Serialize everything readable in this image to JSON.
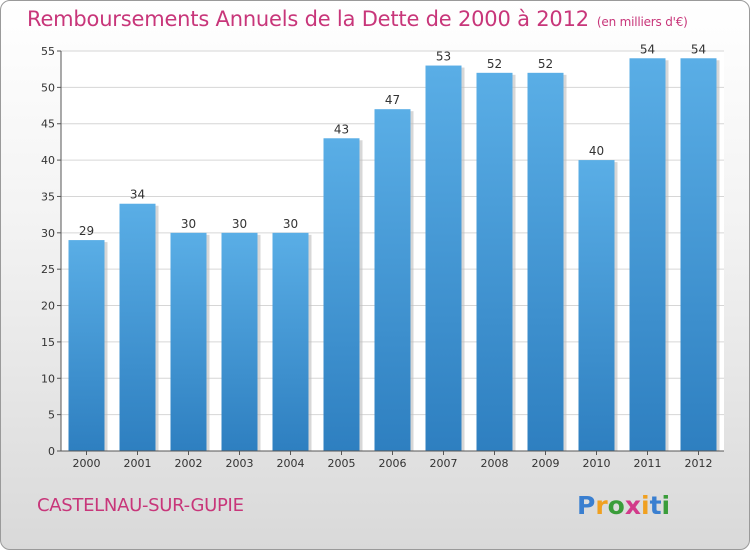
{
  "title": "Remboursements Annuels de la Dette de 2000 à 2012",
  "unit_note": "(en milliers d'€)",
  "commune": "CASTELNAU-SUR-GUPIE",
  "logo": {
    "letters": [
      "P",
      "r",
      "o",
      "x",
      "i",
      "t",
      "i"
    ],
    "colors": [
      "#3a7fd0",
      "#f0a020",
      "#3a9d3a",
      "#d23a8a",
      "#f0a020",
      "#3a7fd0",
      "#3a9d3a"
    ]
  },
  "colors": {
    "bar_top": "#5aaee6",
    "bar_bottom": "#2e7fc0",
    "title": "#c8367a"
  },
  "chart_data": {
    "type": "bar",
    "categories": [
      "2000",
      "2001",
      "2002",
      "2003",
      "2004",
      "2005",
      "2006",
      "2007",
      "2008",
      "2009",
      "2010",
      "2011",
      "2012"
    ],
    "values": [
      29,
      34,
      30,
      30,
      30,
      43,
      47,
      53,
      52,
      52,
      40,
      54,
      54
    ],
    "yticks": [
      0,
      5,
      10,
      15,
      20,
      25,
      30,
      35,
      40,
      45,
      50,
      55
    ],
    "ylim": [
      0,
      55
    ],
    "grid": true,
    "data_labels": true
  }
}
